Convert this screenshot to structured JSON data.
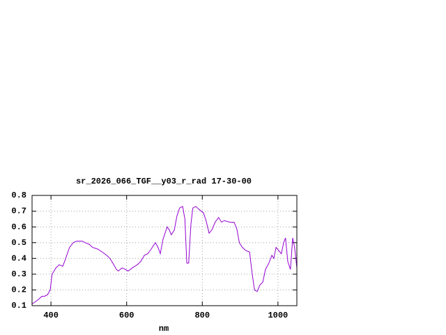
{
  "chart_data": {
    "type": "line",
    "title": "sr_2026_066_TGF__y03_r_rad 17-30-00",
    "x_label": "nm",
    "x": [
      350,
      367,
      376,
      383,
      391,
      398,
      403,
      413,
      422,
      431,
      436,
      449,
      459,
      468,
      483,
      490,
      501,
      510,
      523,
      536,
      547,
      556,
      566,
      573,
      578,
      588,
      597,
      604,
      615,
      628,
      637,
      647,
      656,
      665,
      676,
      683,
      689,
      696,
      707,
      713,
      718,
      726,
      733,
      740,
      748,
      754,
      759,
      764,
      770,
      775,
      783,
      792,
      803,
      810,
      818,
      825,
      834,
      843,
      851,
      858,
      873,
      884,
      891,
      898,
      906,
      915,
      925,
      932,
      938,
      945,
      952,
      960,
      967,
      976,
      984,
      989,
      995,
      1002,
      1009,
      1015,
      1020,
      1026,
      1033,
      1039,
      1044,
      1050
    ],
    "values": [
      0.11,
      0.14,
      0.16,
      0.16,
      0.17,
      0.2,
      0.3,
      0.34,
      0.36,
      0.35,
      0.38,
      0.47,
      0.5,
      0.51,
      0.51,
      0.5,
      0.49,
      0.47,
      0.46,
      0.44,
      0.42,
      0.4,
      0.36,
      0.33,
      0.32,
      0.34,
      0.33,
      0.32,
      0.34,
      0.36,
      0.38,
      0.42,
      0.43,
      0.46,
      0.5,
      0.47,
      0.43,
      0.52,
      0.6,
      0.58,
      0.55,
      0.58,
      0.67,
      0.72,
      0.73,
      0.65,
      0.37,
      0.37,
      0.62,
      0.72,
      0.73,
      0.71,
      0.69,
      0.64,
      0.56,
      0.58,
      0.63,
      0.66,
      0.63,
      0.64,
      0.63,
      0.63,
      0.59,
      0.5,
      0.47,
      0.45,
      0.44,
      0.3,
      0.2,
      0.19,
      0.23,
      0.25,
      0.33,
      0.37,
      0.42,
      0.4,
      0.47,
      0.45,
      0.43,
      0.5,
      0.53,
      0.38,
      0.33,
      0.53,
      0.47,
      0.34
    ],
    "color": "#9400d3",
    "xlim": [
      350,
      1050
    ],
    "xticks": [
      400,
      600,
      800,
      1000
    ],
    "ylim": [
      0.1,
      0.8
    ],
    "yticks": [
      0.1,
      0.2,
      0.3,
      0.4,
      0.5,
      0.6,
      0.7,
      0.8
    ],
    "grid": true
  }
}
